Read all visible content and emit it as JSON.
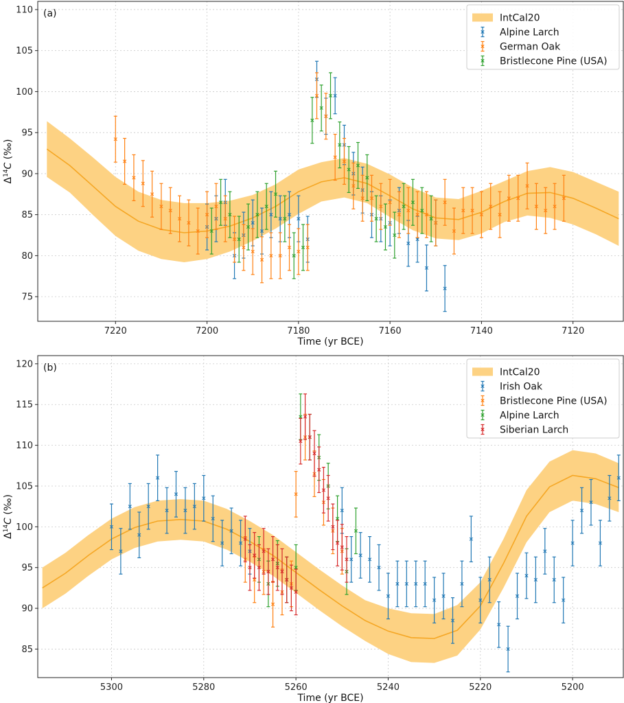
{
  "chart_data": [
    {
      "type": "line",
      "panel_label": "(a)",
      "xlabel": "Time (yr BCE)",
      "ylabel_text": "Δ",
      "ylabel_sup": "14",
      "ylabel_rest": "C (‰)",
      "xlim": [
        7237,
        7109
      ],
      "ylim": [
        72,
        111
      ],
      "xticks": [
        "7220",
        "7200",
        "7180",
        "7160",
        "7140",
        "7120"
      ],
      "yticks": [
        "75",
        "80",
        "85",
        "90",
        "95",
        "100",
        "105",
        "110"
      ],
      "grid": true,
      "legend_position": "top-right",
      "band": {
        "name": "IntCal20",
        "color": "#fdd283",
        "line_color": "#f5a623",
        "x": [
          7235,
          7230,
          7225,
          7220,
          7215,
          7210,
          7205,
          7200,
          7195,
          7190,
          7185,
          7180,
          7175,
          7170,
          7165,
          7160,
          7155,
          7150,
          7145,
          7140,
          7135,
          7130,
          7125,
          7120,
          7115,
          7110
        ],
        "mean": [
          93,
          91,
          88.5,
          86,
          84.2,
          83.2,
          82.8,
          83,
          83.6,
          84.6,
          86,
          87.8,
          89,
          89.5,
          88.8,
          87.3,
          85.7,
          84.6,
          84.4,
          85.3,
          86.6,
          87.6,
          87.7,
          87,
          85.8,
          84.5
        ],
        "lower": [
          89.6,
          87.7,
          85,
          82.4,
          80.6,
          79.6,
          79.2,
          79.6,
          80.5,
          81.8,
          83.3,
          85.1,
          86.6,
          87.1,
          86.4,
          84.7,
          83.1,
          82.1,
          81.9,
          82.7,
          84.1,
          84.9,
          84.6,
          83.8,
          82.6,
          81.2
        ],
        "upper": [
          96.4,
          94.3,
          92,
          89.6,
          87.8,
          86.8,
          86.4,
          86.4,
          86.7,
          87.4,
          88.7,
          90.5,
          91.4,
          91.9,
          91.2,
          89.9,
          88.3,
          87.1,
          86.9,
          87.9,
          89.1,
          90.3,
          90.8,
          90.2,
          89,
          87.8
        ]
      },
      "series": [
        {
          "name": "Alpine Larch",
          "color": "#1f77b4",
          "x": [
            7200,
            7198,
            7196,
            7194,
            7192,
            7190,
            7188,
            7186,
            7184,
            7182,
            7180,
            7178,
            7176,
            7174,
            7172,
            7170,
            7168,
            7166,
            7164,
            7162,
            7160,
            7158,
            7156,
            7154,
            7152,
            7150,
            7148
          ],
          "y": [
            83.5,
            84.5,
            86.5,
            80,
            82.5,
            84,
            83,
            85,
            84.5,
            85,
            84.5,
            82,
            101.5,
            97,
            99.5,
            93.5,
            90,
            88,
            85,
            84.5,
            84,
            85.5,
            81.5,
            82,
            78.5,
            84,
            76
          ],
          "err": [
            2.8,
            2.8,
            2.8,
            2.8,
            2.8,
            2.8,
            2.8,
            2.8,
            2.8,
            2.8,
            2.8,
            2.8,
            2.2,
            2.2,
            2.2,
            2.4,
            2.6,
            2.8,
            2.8,
            2.8,
            2.8,
            2.8,
            2.8,
            2.8,
            2.8,
            2.8,
            2.8
          ]
        },
        {
          "name": "German Oak",
          "color": "#ff7f0e",
          "x": [
            7220,
            7218,
            7216,
            7214,
            7212,
            7210,
            7208,
            7206,
            7204,
            7202,
            7200,
            7198,
            7196,
            7194,
            7192,
            7190,
            7188,
            7186,
            7184,
            7182,
            7180,
            7178,
            7176,
            7174,
            7172,
            7170,
            7168,
            7166,
            7164,
            7162,
            7160,
            7158,
            7156,
            7154,
            7152,
            7150,
            7148,
            7146,
            7144,
            7142,
            7140,
            7138,
            7136,
            7134,
            7132,
            7130,
            7128,
            7126,
            7124,
            7122
          ],
          "y": [
            94.2,
            91.5,
            89.5,
            88.8,
            87.5,
            86,
            85.5,
            84.5,
            84,
            83,
            85,
            86,
            84.5,
            82,
            81,
            80.5,
            79.5,
            80,
            80,
            81,
            80.5,
            81,
            99.5,
            97,
            92,
            91.5,
            88.5,
            87,
            87,
            86,
            86.5,
            85,
            85.5,
            85,
            85,
            84,
            86.5,
            83,
            85.5,
            85.5,
            85,
            86,
            85,
            87,
            87,
            88.5,
            86,
            85.5,
            86,
            87
          ]
        },
        {
          "name": "Bristlecone Pine (USA)",
          "color": "#2ca02c",
          "x": [
            7199,
            7197,
            7195,
            7193,
            7191,
            7189,
            7187,
            7185,
            7183,
            7181,
            7179,
            7177,
            7175,
            7173,
            7171,
            7169,
            7167,
            7165,
            7163,
            7161,
            7159,
            7157,
            7155,
            7153,
            7151
          ],
          "y": [
            83,
            86.5,
            85,
            82,
            83.5,
            85,
            86,
            87.5,
            84.5,
            80,
            81,
            96.5,
            98,
            99.5,
            93.5,
            90.5,
            91,
            89.5,
            84.5,
            83.5,
            82.5,
            86,
            86.5,
            85.5,
            84.5
          ]
        }
      ]
    },
    {
      "type": "line",
      "panel_label": "(b)",
      "xlabel": "Time (yr BCE)",
      "ylabel_text": "Δ",
      "ylabel_sup": "14",
      "ylabel_rest": "C (‰)",
      "xlim": [
        5316,
        5189
      ],
      "ylim": [
        81.5,
        121
      ],
      "xticks": [
        "5300",
        "5280",
        "5260",
        "5240",
        "5220",
        "5200"
      ],
      "yticks": [
        "85",
        "90",
        "95",
        "100",
        "105",
        "110",
        "115",
        "120"
      ],
      "grid": true,
      "legend_position": "top-right",
      "band": {
        "name": "IntCal20",
        "color": "#fdd283",
        "line_color": "#f5a623",
        "x": [
          5315,
          5310,
          5305,
          5300,
          5295,
          5290,
          5285,
          5280,
          5275,
          5270,
          5265,
          5260,
          5255,
          5250,
          5245,
          5240,
          5235,
          5230,
          5225,
          5220,
          5215,
          5210,
          5205,
          5200,
          5195,
          5190
        ],
        "mean": [
          92.5,
          94.3,
          96.5,
          98.5,
          99.9,
          100.7,
          100.9,
          100.7,
          99.7,
          98.2,
          96.5,
          94.4,
          92.3,
          90.3,
          88.5,
          87.2,
          86.4,
          86.3,
          87.3,
          90.3,
          95.5,
          101.3,
          104.9,
          106.3,
          105.9,
          104.8
        ],
        "lower": [
          90,
          91.8,
          94,
          96,
          97.4,
          98.2,
          98.4,
          98.2,
          97.2,
          95.7,
          94,
          91.9,
          89.8,
          87.8,
          86,
          84.4,
          83.4,
          83.3,
          84.2,
          87.4,
          92.5,
          98.1,
          101.8,
          103.2,
          102.8,
          101.8
        ],
        "upper": [
          95,
          96.8,
          99,
          101,
          102.4,
          103.2,
          103.4,
          103.2,
          102.2,
          100.7,
          99,
          96.9,
          94.8,
          92.8,
          91,
          90,
          89.4,
          89.3,
          90.4,
          93.2,
          98.5,
          104.5,
          108,
          109.4,
          109,
          107.8
        ]
      },
      "series": [
        {
          "name": "Irish Oak",
          "color": "#1f77b4",
          "x": [
            5300,
            5298,
            5296,
            5294,
            5292,
            5290,
            5288,
            5286,
            5284,
            5282,
            5280,
            5278,
            5276,
            5274,
            5272,
            5270,
            5250,
            5248,
            5246,
            5244,
            5242,
            5240,
            5238,
            5236,
            5234,
            5232,
            5230,
            5228,
            5226,
            5224,
            5222,
            5220,
            5218,
            5216,
            5214,
            5212,
            5210,
            5208,
            5206,
            5204,
            5202,
            5200,
            5198,
            5196,
            5194,
            5192,
            5190
          ],
          "y": [
            100,
            97,
            102.5,
            99,
            102.5,
            106,
            102,
            104,
            102,
            102.5,
            103.5,
            101,
            98,
            99.5,
            98,
            97,
            102,
            96,
            96.5,
            96,
            95,
            91.5,
            93,
            93,
            93,
            93,
            91,
            91.5,
            88.5,
            93,
            98.5,
            91,
            93.5,
            88,
            85,
            91.5,
            94,
            93.5,
            97,
            93.5,
            91,
            98,
            102,
            103,
            98,
            103.5,
            106
          ]
        },
        {
          "name": "Bristlecone Pine (USA)",
          "color": "#ff7f0e",
          "x": [
            5271,
            5269,
            5267,
            5265,
            5263,
            5261,
            5260,
            5258,
            5256,
            5254,
            5252,
            5250
          ],
          "y": [
            96,
            93.5,
            94.5,
            90.5,
            92,
            93,
            104,
            111,
            106.5,
            103,
            99.5,
            97
          ]
        },
        {
          "name": "Alpine Larch",
          "color": "#2ca02c",
          "x": [
            5268,
            5266,
            5264,
            5262,
            5260,
            5259,
            5257,
            5255,
            5253,
            5251,
            5249,
            5247
          ],
          "y": [
            96,
            93,
            95.5,
            93.5,
            95,
            113.5,
            111,
            108.5,
            105,
            101,
            94.5,
            99.5
          ]
        },
        {
          "name": "Siberian Larch",
          "color": "#d62728",
          "x": [
            5271,
            5270,
            5269,
            5268,
            5267,
            5266,
            5265,
            5264,
            5263,
            5262,
            5261,
            5260,
            5259,
            5258,
            5257,
            5256,
            5255,
            5254,
            5253,
            5252,
            5251,
            5250,
            5249
          ],
          "y": [
            98.5,
            95,
            96.5,
            95,
            97,
            94.5,
            96,
            95,
            94.5,
            93.5,
            92.5,
            92,
            110.5,
            113.5,
            111,
            109,
            107,
            104.5,
            103.5,
            100,
            98,
            97.5,
            96
          ]
        }
      ]
    }
  ]
}
